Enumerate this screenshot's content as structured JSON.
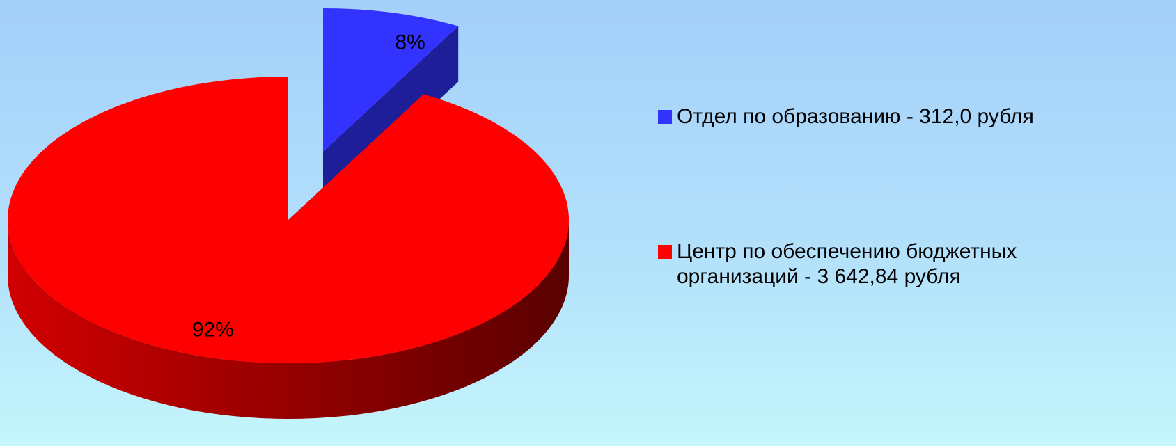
{
  "chart_data": {
    "type": "pie",
    "categories": [
      "Отдел по образованию - 312,0 рубля",
      "Центр по обеспечению бюджетных организаций - 3 642,84 рубля"
    ],
    "values": [
      8,
      92
    ],
    "value_labels": [
      "8%",
      "92%"
    ],
    "colors": [
      "#3333ff",
      "#ff0000"
    ],
    "legend": "right"
  }
}
